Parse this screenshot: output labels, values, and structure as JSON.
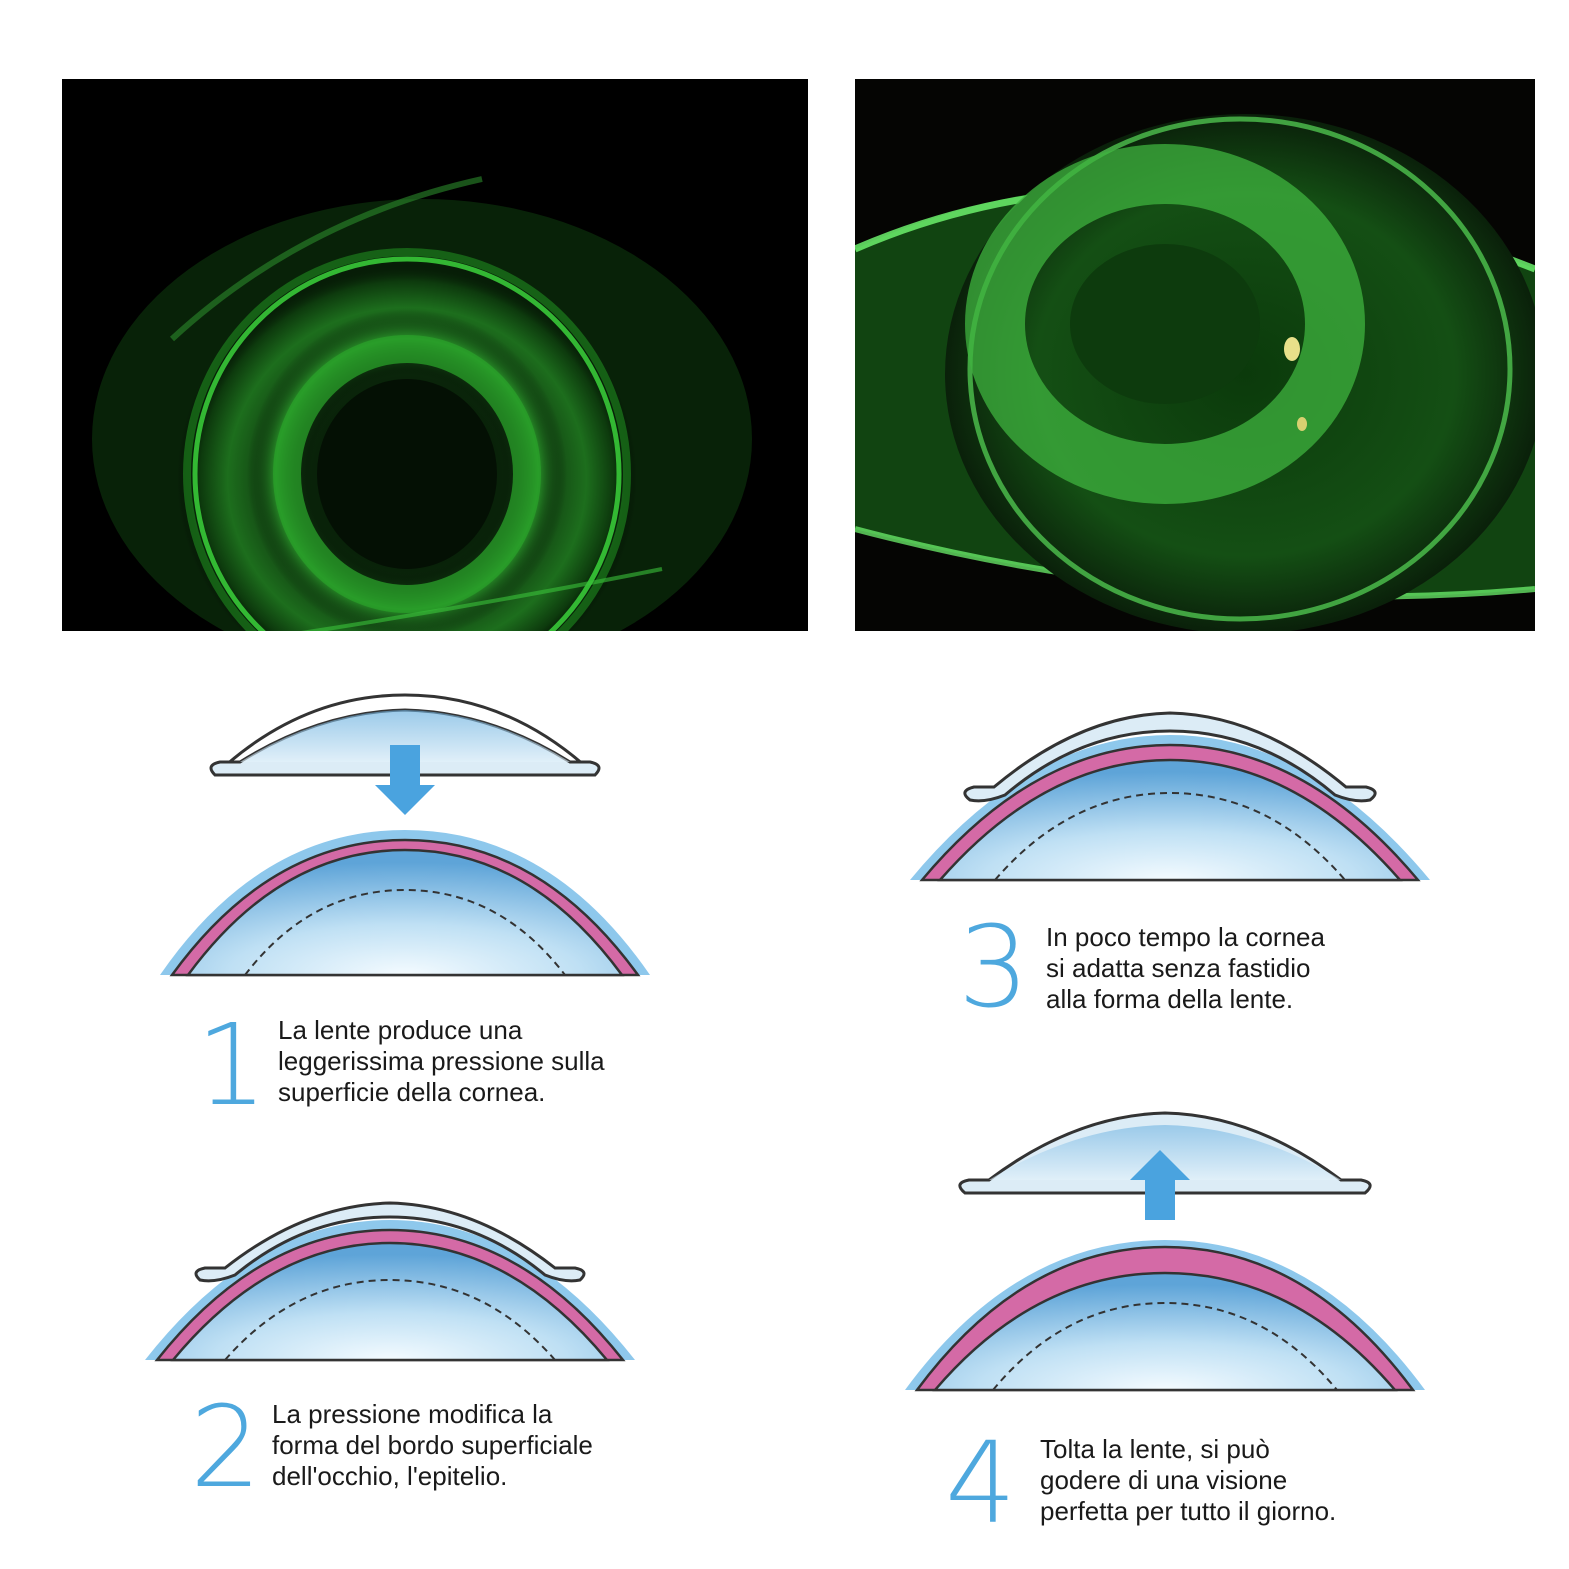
{
  "photos": {
    "left": {
      "description_icon": "eye-fluorescein-lens-icon"
    },
    "right": {
      "description_icon": "eye-fluorescein-lens-icon"
    }
  },
  "colors": {
    "accent": "#4ea8de",
    "arrow": "#4aa3df",
    "epithelium": "#d46aa6",
    "cornea_dark": "#3f86c4",
    "cornea_light": "#e6f3fb",
    "lens_fill": "#dcecf6",
    "fluorescein": "#3fd13a"
  },
  "steps": [
    {
      "number": "1",
      "text": "La lente produce una\nleggerissima pressione sulla\nsuperficie della cornea."
    },
    {
      "number": "2",
      "text": "La pressione modifica la\nforma del bordo superficiale\ndell'occhio, l'epitelio."
    },
    {
      "number": "3",
      "text": "In poco tempo la cornea\nsi adatta senza fastidio\nalla forma della lente."
    },
    {
      "number": "4",
      "text": "Tolta la lente, si può\ngodere di una visione\nperfetta per tutto il giorno."
    }
  ]
}
